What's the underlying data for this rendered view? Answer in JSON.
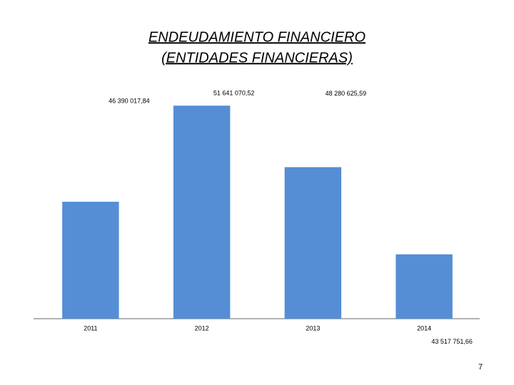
{
  "chart_data": {
    "type": "bar",
    "title": [
      "ENDEUDAMIENTO FINANCIERO",
      "(ENTIDADES FINANCIERAS)"
    ],
    "categories": [
      "2011",
      "2012",
      "2013",
      "2014"
    ],
    "values": [
      46390017.84,
      51641070.52,
      48280625.59,
      43517751.66
    ],
    "value_labels": [
      "46 390 017,84",
      "51 641 070,52",
      "48 280 625,59",
      "43 517 751,66"
    ],
    "color": "#558ed5",
    "ylim": [
      40000000,
      52000000
    ]
  },
  "page_number": "7"
}
